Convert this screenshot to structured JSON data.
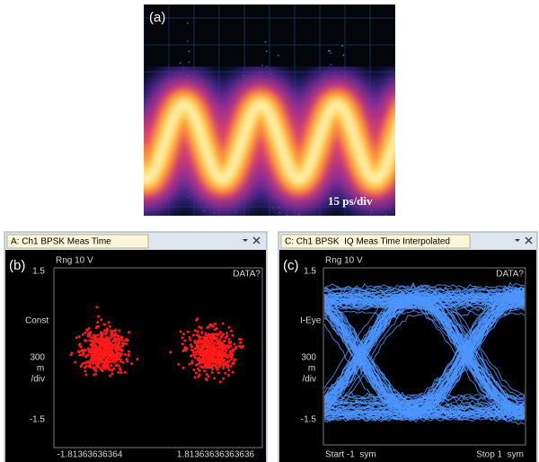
{
  "panel_a": {
    "label": "(a)",
    "scale": "15 ps/div"
  },
  "panel_b": {
    "label": "(b)",
    "window_title": "A: Ch1 BPSK Meas Time",
    "range": "Rng 10 V",
    "status": "DATA?",
    "y_top": "1.5",
    "y_mode": "Const",
    "y_scale": [
      "300",
      "m",
      "/div"
    ],
    "y_bottom": "-1.5",
    "x_left": "-1.81363636364",
    "x_right": "1.81363636363636"
  },
  "panel_c": {
    "label": "(c)",
    "window_title": "C: Ch1 BPSK  IQ Meas Time Interpolated",
    "range": "Rng 10 V",
    "status": "DATA?",
    "y_top": "1.5",
    "y_mode": "I-Eye",
    "y_scale": [
      "300",
      "m",
      "/div"
    ],
    "y_bottom": "-1.5",
    "x_left": "Start -1  sym",
    "x_right": "Stop 1  sym"
  }
}
